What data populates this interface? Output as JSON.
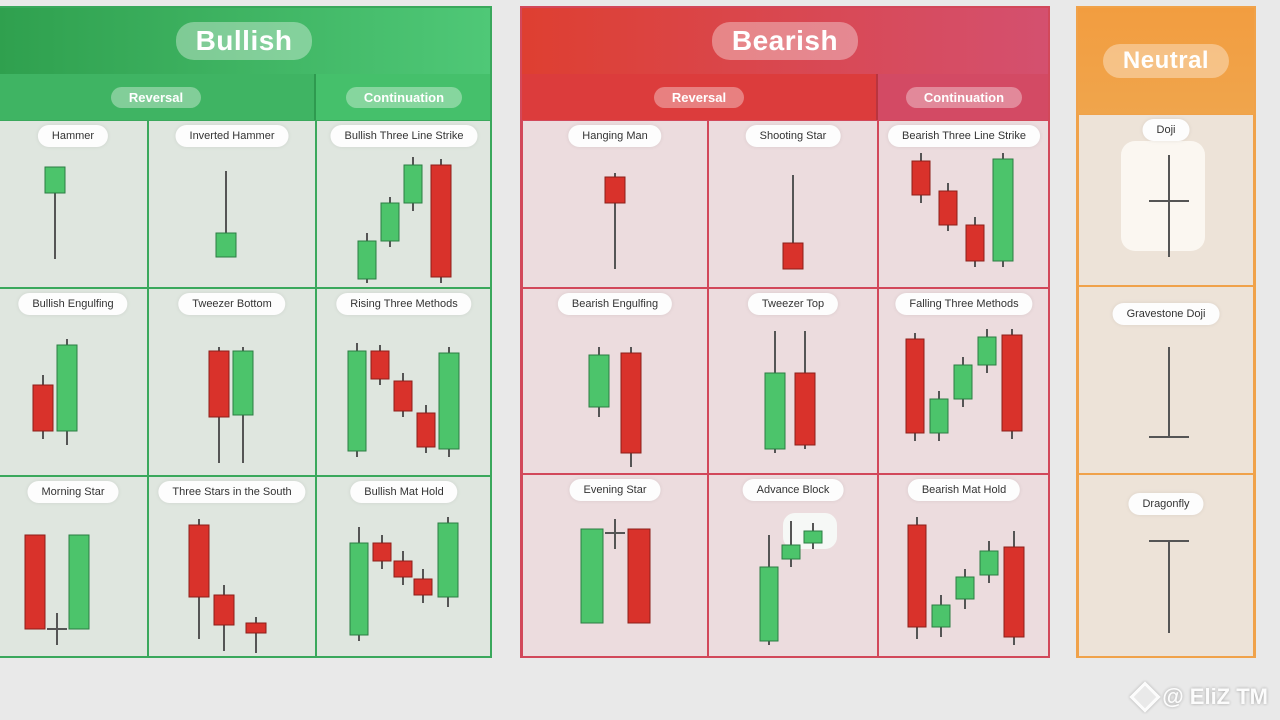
{
  "colors": {
    "bull": "#4cc46b",
    "bear": "#d9322b",
    "wick": "#555555"
  },
  "panels": {
    "bullish": {
      "title": "Bullish",
      "sub": [
        "Reversal",
        "Continuation"
      ],
      "patterns": [
        "Hammer",
        "Inverted Hammer",
        "Bullish Three Line Strike",
        "Bullish Engulfing",
        "Tweezer Bottom",
        "Rising Three Methods",
        "Morning Star",
        "Three Stars in the South",
        "Bullish Mat Hold"
      ]
    },
    "bearish": {
      "title": "Bearish",
      "sub": [
        "Reversal",
        "Continuation"
      ],
      "patterns": [
        "Hanging Man",
        "Shooting Star",
        "Bearish Three Line Strike",
        "Bearish Engulfing",
        "Tweezer Top",
        "Falling Three Methods",
        "Evening Star",
        "Advance Block",
        "Bearish Mat Hold"
      ]
    },
    "neutral": {
      "title": "Neutral",
      "patterns": [
        "Doji",
        "Gravestone Doji",
        "Dragonfly"
      ]
    }
  },
  "watermark": "@ EliZ TM"
}
